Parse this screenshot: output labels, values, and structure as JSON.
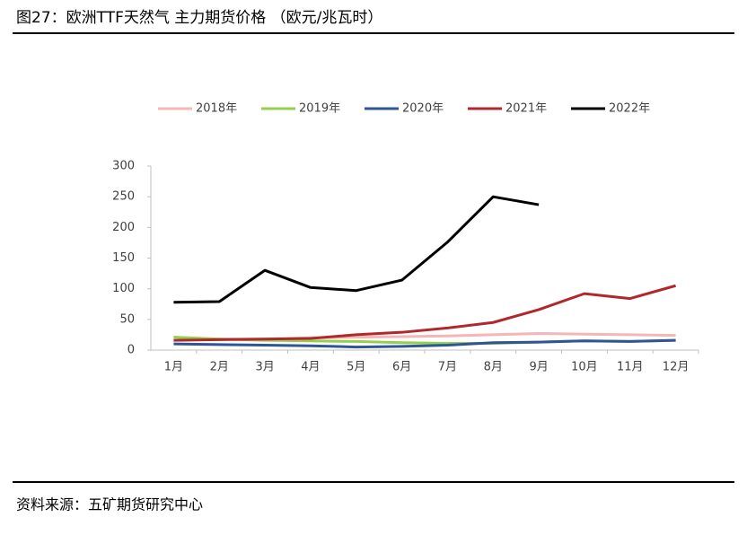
{
  "chart_data": {
    "type": "line",
    "title": "图27：欧洲TTF天然气 主力期货价格 （欧元/兆瓦时）",
    "categories": [
      "1月",
      "2月",
      "3月",
      "4月",
      "5月",
      "6月",
      "7月",
      "8月",
      "9月",
      "10月",
      "11月",
      "12月"
    ],
    "series": [
      {
        "name": "2018年",
        "color": "#f4b6b6",
        "values": [
          21,
          18,
          18,
          20,
          21,
          22,
          23,
          25,
          27,
          26,
          25,
          24
        ]
      },
      {
        "name": "2019年",
        "color": "#92d050",
        "values": [
          21,
          18,
          16,
          15,
          14,
          12,
          11,
          11,
          13,
          15,
          14,
          16
        ]
      },
      {
        "name": "2020年",
        "color": "#2f5597",
        "values": [
          10,
          9,
          8,
          7,
          5,
          6,
          8,
          12,
          13,
          15,
          14,
          16
        ]
      },
      {
        "name": "2021年",
        "color": "#b0282c",
        "values": [
          16,
          17,
          18,
          19,
          25,
          29,
          36,
          45,
          66,
          92,
          84,
          105
        ]
      },
      {
        "name": "2022年",
        "color": "#000000",
        "values": [
          78,
          79,
          130,
          102,
          97,
          114,
          176,
          250,
          237,
          null,
          null,
          null
        ]
      }
    ],
    "ylim": [
      0,
      300
    ],
    "yticks": [
      0,
      50,
      100,
      150,
      200,
      250,
      300
    ],
    "grid": false,
    "legend": "top"
  },
  "source": "资料来源：五矿期货研究中心"
}
